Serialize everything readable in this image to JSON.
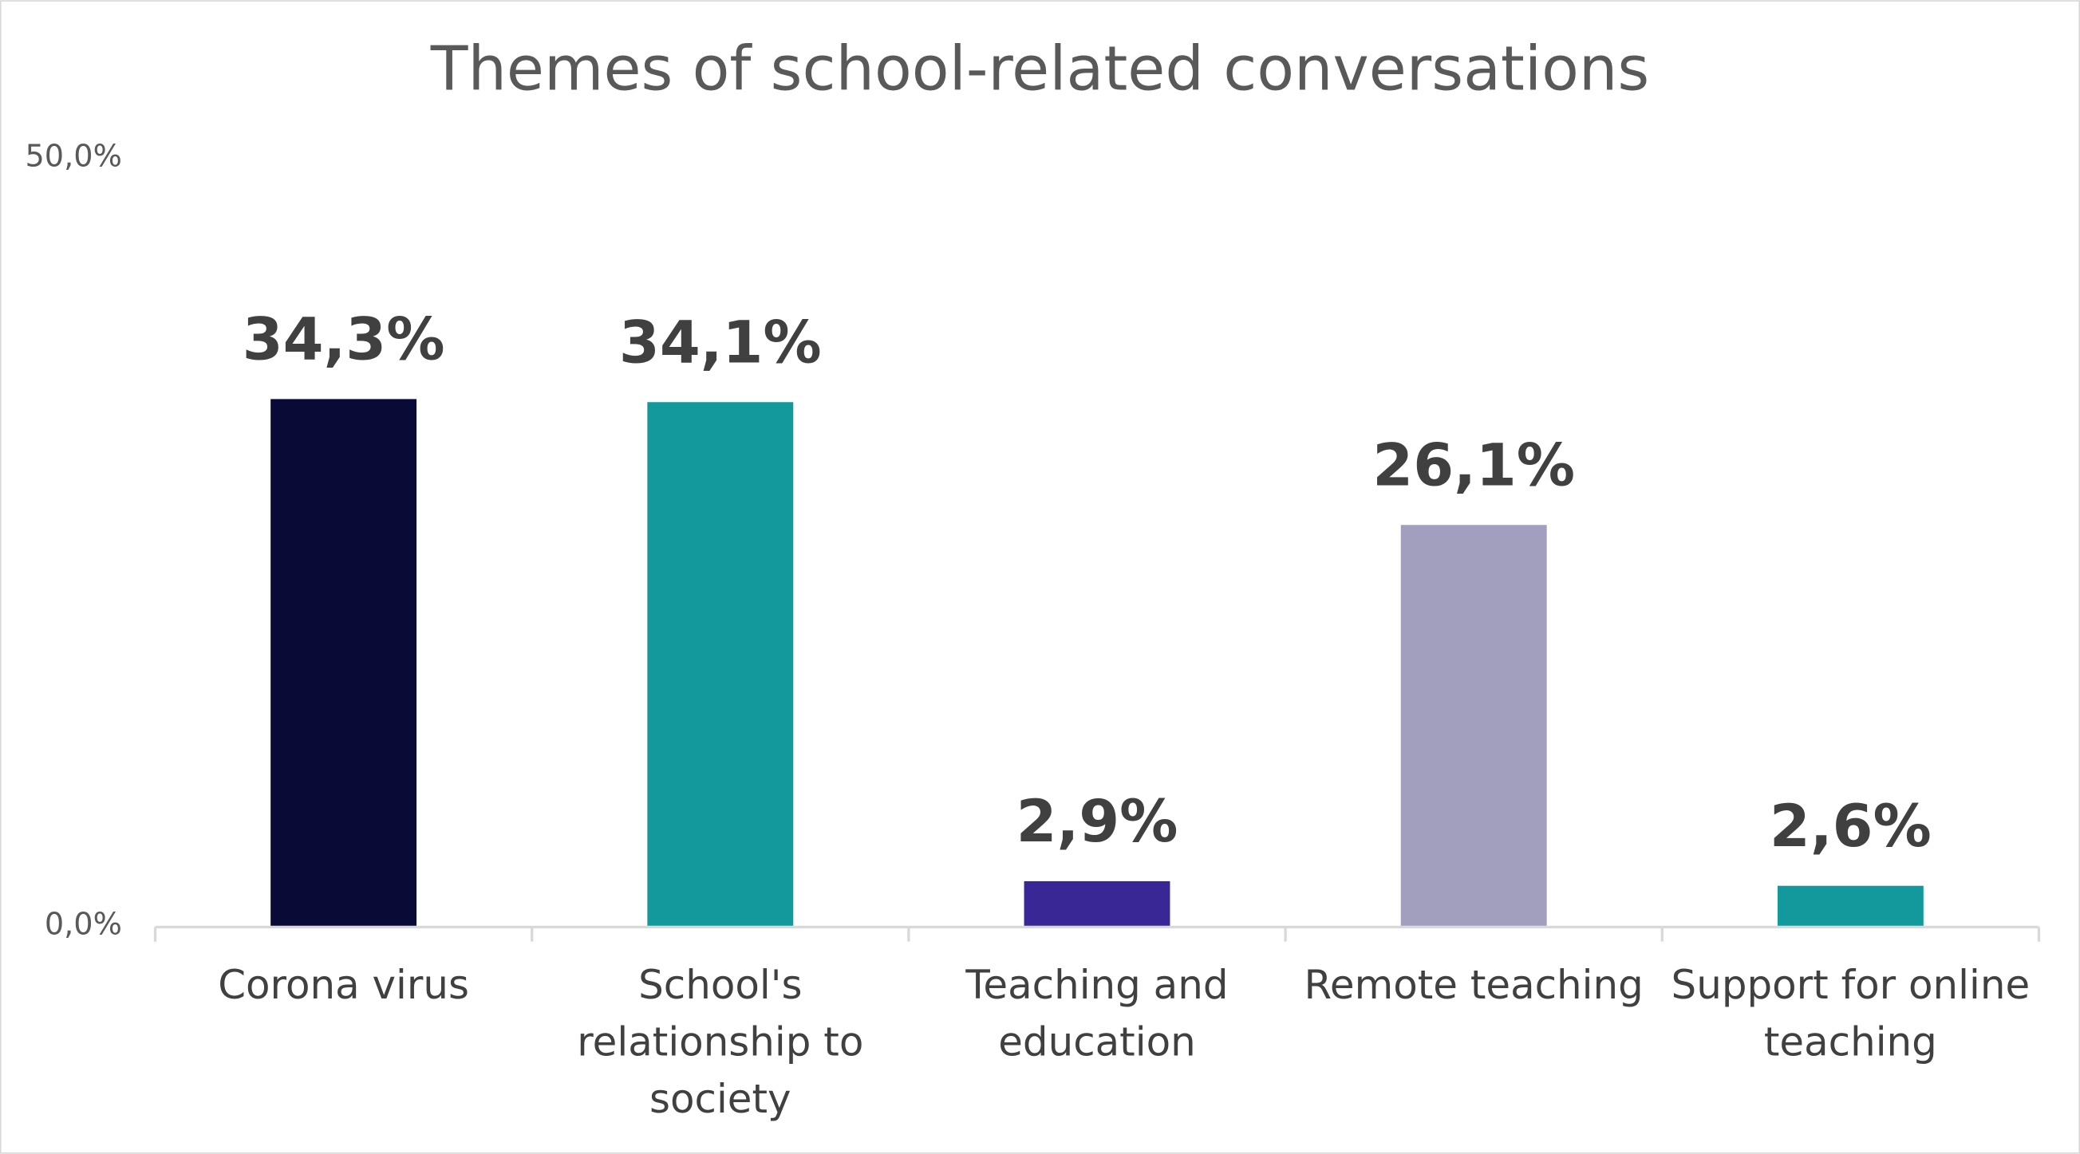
{
  "chart_data": {
    "type": "bar",
    "title": "Themes of school-related conversations",
    "categories": [
      "Corona virus",
      "School's relationship to society",
      "Teaching and education",
      "Remote teaching",
      "Support for online teaching"
    ],
    "values": [
      34.3,
      34.1,
      2.9,
      26.1,
      2.6
    ],
    "value_labels": [
      "34,3%",
      "34,1%",
      "2,9%",
      "26,1%",
      "2,6%"
    ],
    "colors": [
      "#0a0a36",
      "#13999b",
      "#3a2796",
      "#a29ebd",
      "#13999b"
    ],
    "ylim": [
      0,
      50
    ],
    "yticks": [
      {
        "value": 0,
        "label": "0,0%"
      },
      {
        "value": 50,
        "label": "50,0%"
      }
    ],
    "grid": false
  }
}
